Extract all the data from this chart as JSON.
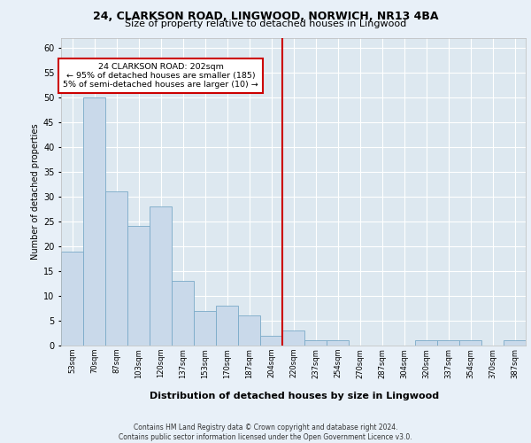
{
  "title": "24, CLARKSON ROAD, LINGWOOD, NORWICH, NR13 4BA",
  "subtitle": "Size of property relative to detached houses in Lingwood",
  "xlabel": "Distribution of detached houses by size in Lingwood",
  "ylabel": "Number of detached properties",
  "bar_categories": [
    "53sqm",
    "70sqm",
    "87sqm",
    "103sqm",
    "120sqm",
    "137sqm",
    "153sqm",
    "170sqm",
    "187sqm",
    "204sqm",
    "220sqm",
    "237sqm",
    "254sqm",
    "270sqm",
    "287sqm",
    "304sqm",
    "320sqm",
    "337sqm",
    "354sqm",
    "370sqm",
    "387sqm"
  ],
  "bar_heights": [
    19,
    50,
    31,
    24,
    28,
    13,
    7,
    8,
    6,
    2,
    3,
    1,
    1,
    0,
    0,
    0,
    1,
    1,
    1,
    0,
    1
  ],
  "bar_color": "#c9d9ea",
  "bar_edge_color": "#7aaac8",
  "vline_x": 9.5,
  "vline_color": "#cc0000",
  "annotation_text": "24 CLARKSON ROAD: 202sqm\n← 95% of detached houses are smaller (185)\n5% of semi-detached houses are larger (10) →",
  "annotation_box_color": "#ffffff",
  "annotation_box_edge": "#cc0000",
  "ylim": [
    0,
    62
  ],
  "yticks": [
    0,
    5,
    10,
    15,
    20,
    25,
    30,
    35,
    40,
    45,
    50,
    55,
    60
  ],
  "background_color": "#dde8f0",
  "grid_color": "#ffffff",
  "fig_background": "#e8f0f8",
  "footer": "Contains HM Land Registry data © Crown copyright and database right 2024.\nContains public sector information licensed under the Open Government Licence v3.0.",
  "title_fontsize": 9,
  "subtitle_fontsize": 8,
  "ylabel_fontsize": 7,
  "ytick_fontsize": 7,
  "xtick_fontsize": 6,
  "xlabel_fontsize": 8,
  "footer_fontsize": 5.5,
  "annot_fontsize": 6.8
}
